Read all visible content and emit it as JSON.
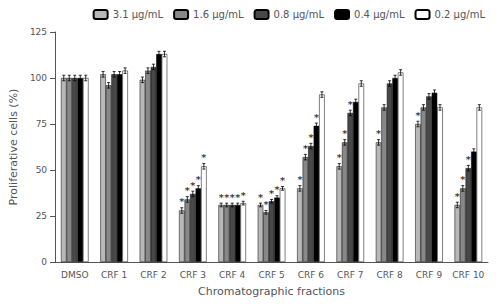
{
  "chart_data": {
    "type": "bar",
    "xlabel": "Chromatographic fractions",
    "ylabel": "Proliferative cells (%)",
    "categories": [
      "DMSO",
      "CRF 1",
      "CRF 2",
      "CRF 3",
      "CRF 4",
      "CRF 5",
      "CRF 6",
      "CRF 7",
      "CRF 8",
      "CRF 9",
      "CRF 10"
    ],
    "series": [
      {
        "name": "3.1 μg/mL",
        "color": "#b8b8b8",
        "values": [
          100,
          102,
          99,
          28,
          31,
          31,
          40,
          52,
          65,
          75,
          31
        ],
        "errors": [
          1.5,
          1.5,
          1.5,
          1.5,
          1.0,
          1.0,
          1.5,
          1.5,
          1.5,
          1.5,
          1.5
        ],
        "annotations": [
          null,
          null,
          null,
          "*",
          "*",
          "*",
          "*",
          "*",
          "*",
          "*",
          "*"
        ]
      },
      {
        "name": "1.6 μg/mL",
        "color": "#888888",
        "values": [
          100,
          96,
          104,
          34,
          31,
          27,
          57,
          65,
          84,
          84,
          40
        ],
        "errors": [
          1.5,
          1.5,
          1.5,
          1.5,
          1.0,
          1.0,
          1.5,
          1.5,
          1.5,
          1.5,
          1.5
        ],
        "annotations": [
          null,
          null,
          null,
          "*",
          "*",
          "*",
          "*",
          "*",
          null,
          null,
          "*"
        ]
      },
      {
        "name": "0.8 μg/mL",
        "color": "#484848",
        "values": [
          100,
          102,
          106,
          37,
          31,
          33,
          63,
          81,
          97,
          90,
          51
        ],
        "errors": [
          1.5,
          1.5,
          1.5,
          1.5,
          1.0,
          1.0,
          1.5,
          1.5,
          1.5,
          1.5,
          1.5
        ],
        "annotations": [
          null,
          null,
          null,
          "*",
          "*",
          "*",
          "*",
          "*",
          null,
          null,
          "*"
        ]
      },
      {
        "name": "0.4 μg/mL",
        "color": "#000000",
        "values": [
          100,
          102,
          113,
          40,
          31,
          35,
          74,
          87,
          100,
          92,
          60
        ],
        "errors": [
          1.5,
          1.5,
          1.5,
          1.5,
          1.0,
          1.0,
          1.5,
          1.5,
          1.5,
          1.5,
          1.5
        ],
        "annotations": [
          null,
          null,
          null,
          "*",
          "*",
          "*",
          "*",
          null,
          null,
          null,
          null
        ]
      },
      {
        "name": "0.2 μg/mL",
        "color": "#ffffff",
        "values": [
          100,
          104,
          113,
          52,
          32,
          40,
          91,
          97,
          103,
          84,
          84
        ],
        "errors": [
          1.5,
          1.5,
          1.5,
          1.5,
          1.0,
          1.0,
          1.5,
          1.5,
          1.5,
          1.5,
          1.5
        ],
        "annotations": [
          null,
          null,
          null,
          "*",
          "*",
          "*",
          null,
          null,
          null,
          null,
          null
        ]
      }
    ],
    "ylim": [
      0,
      125
    ],
    "yticks": [
      0,
      25,
      50,
      75,
      100,
      125
    ],
    "grid": false,
    "legend": "upper right"
  }
}
